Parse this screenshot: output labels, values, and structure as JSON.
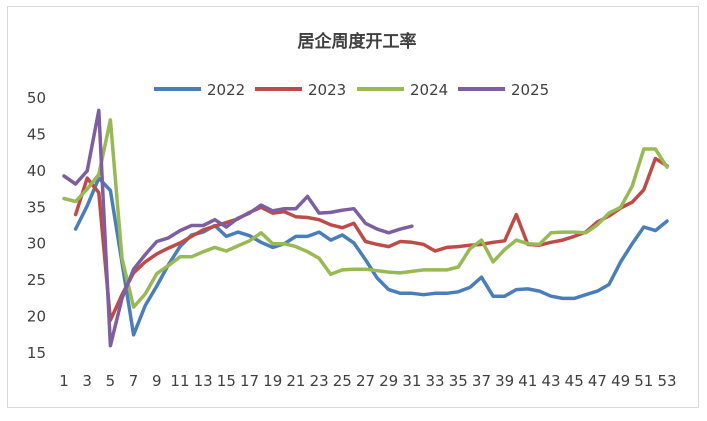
{
  "chart_data": {
    "type": "line",
    "title": "居企周度开工率",
    "xlabel": "",
    "ylabel": "",
    "ylim": [
      15,
      50
    ],
    "yticks": [
      15,
      20,
      25,
      30,
      35,
      40,
      45,
      50
    ],
    "xlim": [
      1,
      53
    ],
    "xticks": [
      1,
      3,
      5,
      7,
      9,
      11,
      13,
      15,
      17,
      19,
      21,
      23,
      25,
      27,
      29,
      31,
      33,
      35,
      37,
      39,
      41,
      43,
      45,
      47,
      49,
      51,
      53
    ],
    "grid": false,
    "legend": "top",
    "series": [
      {
        "name": "2022",
        "color": "#4a7ebb",
        "x": [
          2,
          3,
          4,
          5,
          7,
          8,
          9,
          10,
          11,
          12,
          13,
          14,
          15,
          16,
          17,
          18,
          19,
          20,
          21,
          22,
          23,
          24,
          25,
          26,
          27,
          28,
          29,
          30,
          31,
          32,
          33,
          34,
          35,
          36,
          37,
          38,
          39,
          40,
          41,
          42,
          43,
          44,
          45,
          46,
          47,
          48,
          49,
          50,
          51,
          52,
          53
        ],
        "values": [
          32,
          35.2,
          39,
          37.3,
          17.5,
          21.5,
          24.2,
          27.1,
          29.6,
          31.2,
          31.6,
          32.5,
          31,
          31.6,
          31.1,
          30.2,
          29.5,
          30,
          31,
          31,
          31.6,
          30.5,
          31.2,
          30.1,
          27.8,
          25.3,
          23.7,
          23.2,
          23.2,
          23,
          23.2,
          23.2,
          23.4,
          24,
          25.4,
          22.8,
          22.8,
          23.7,
          23.8,
          23.5,
          22.8,
          22.5,
          22.5,
          23,
          23.5,
          24.4,
          27.5,
          30,
          32.3,
          31.8,
          33.1
        ]
      },
      {
        "name": "2023",
        "color": "#be4b48",
        "x": [
          2,
          3,
          4,
          5,
          6,
          7,
          8,
          9,
          10,
          11,
          12,
          13,
          14,
          15,
          16,
          17,
          18,
          19,
          20,
          21,
          22,
          23,
          24,
          25,
          26,
          27,
          28,
          29,
          30,
          31,
          32,
          33,
          34,
          35,
          36,
          37,
          38,
          39,
          40,
          41,
          42,
          43,
          44,
          45,
          46,
          47,
          48,
          49,
          50,
          51,
          52,
          53
        ],
        "values": [
          34,
          39,
          37,
          19.5,
          23,
          26,
          27.5,
          28.6,
          29.4,
          30.1,
          31,
          31.9,
          32.4,
          32.9,
          33.4,
          34.3,
          35,
          34.2,
          34.4,
          33.7,
          33.6,
          33.3,
          32.6,
          32.2,
          32.8,
          30.3,
          29.9,
          29.6,
          30.3,
          30.2,
          29.9,
          29,
          29.5,
          29.6,
          29.8,
          29.9,
          30.2,
          30.4,
          34,
          29.9,
          29.8,
          30.2,
          30.5,
          31,
          31.6,
          33,
          33.8,
          34.9,
          35.7,
          37.4,
          41.7,
          40.7
        ]
      },
      {
        "name": "2024",
        "color": "#98b954",
        "x": [
          1,
          2,
          3,
          4,
          5,
          6,
          7,
          8,
          9,
          10,
          11,
          12,
          13,
          14,
          15,
          16,
          17,
          18,
          19,
          20,
          21,
          22,
          23,
          24,
          25,
          26,
          27,
          28,
          29,
          30,
          31,
          32,
          33,
          34,
          35,
          36,
          37,
          38,
          39,
          40,
          41,
          42,
          43,
          44,
          45,
          46,
          47,
          48,
          49,
          50,
          51,
          52,
          53
        ],
        "values": [
          36.2,
          35.8,
          37.5,
          39.5,
          47,
          28,
          21.3,
          23.1,
          25.9,
          27,
          28.2,
          28.2,
          28.9,
          29.5,
          29,
          29.7,
          30.4,
          31.5,
          30,
          30,
          29.6,
          28.9,
          28,
          25.8,
          26.4,
          26.5,
          26.5,
          26.3,
          26.1,
          26,
          26.2,
          26.4,
          26.4,
          26.4,
          26.8,
          29.3,
          30.5,
          27.5,
          29.2,
          30.5,
          30,
          29.9,
          31.5,
          31.6,
          31.6,
          31.5,
          32.6,
          34.2,
          35,
          37.9,
          43,
          43,
          40.5
        ]
      },
      {
        "name": "2025",
        "color": "#7d5fa0",
        "x": [
          1,
          2,
          3,
          4,
          5,
          6,
          7,
          8,
          9,
          10,
          11,
          12,
          13,
          14,
          15,
          16,
          17,
          18,
          19,
          20,
          21,
          22,
          23,
          24,
          25,
          26,
          27,
          28,
          29,
          30,
          31
        ],
        "values": [
          39.3,
          38.2,
          40,
          48.3,
          16,
          22.5,
          26.5,
          28.5,
          30.3,
          30.8,
          31.8,
          32.5,
          32.5,
          33.3,
          32.3,
          33.5,
          34.2,
          35.3,
          34.5,
          34.8,
          34.8,
          36.5,
          34.2,
          34.3,
          34.6,
          34.8,
          32.8,
          32,
          31.5,
          32,
          32.4
        ]
      }
    ]
  }
}
